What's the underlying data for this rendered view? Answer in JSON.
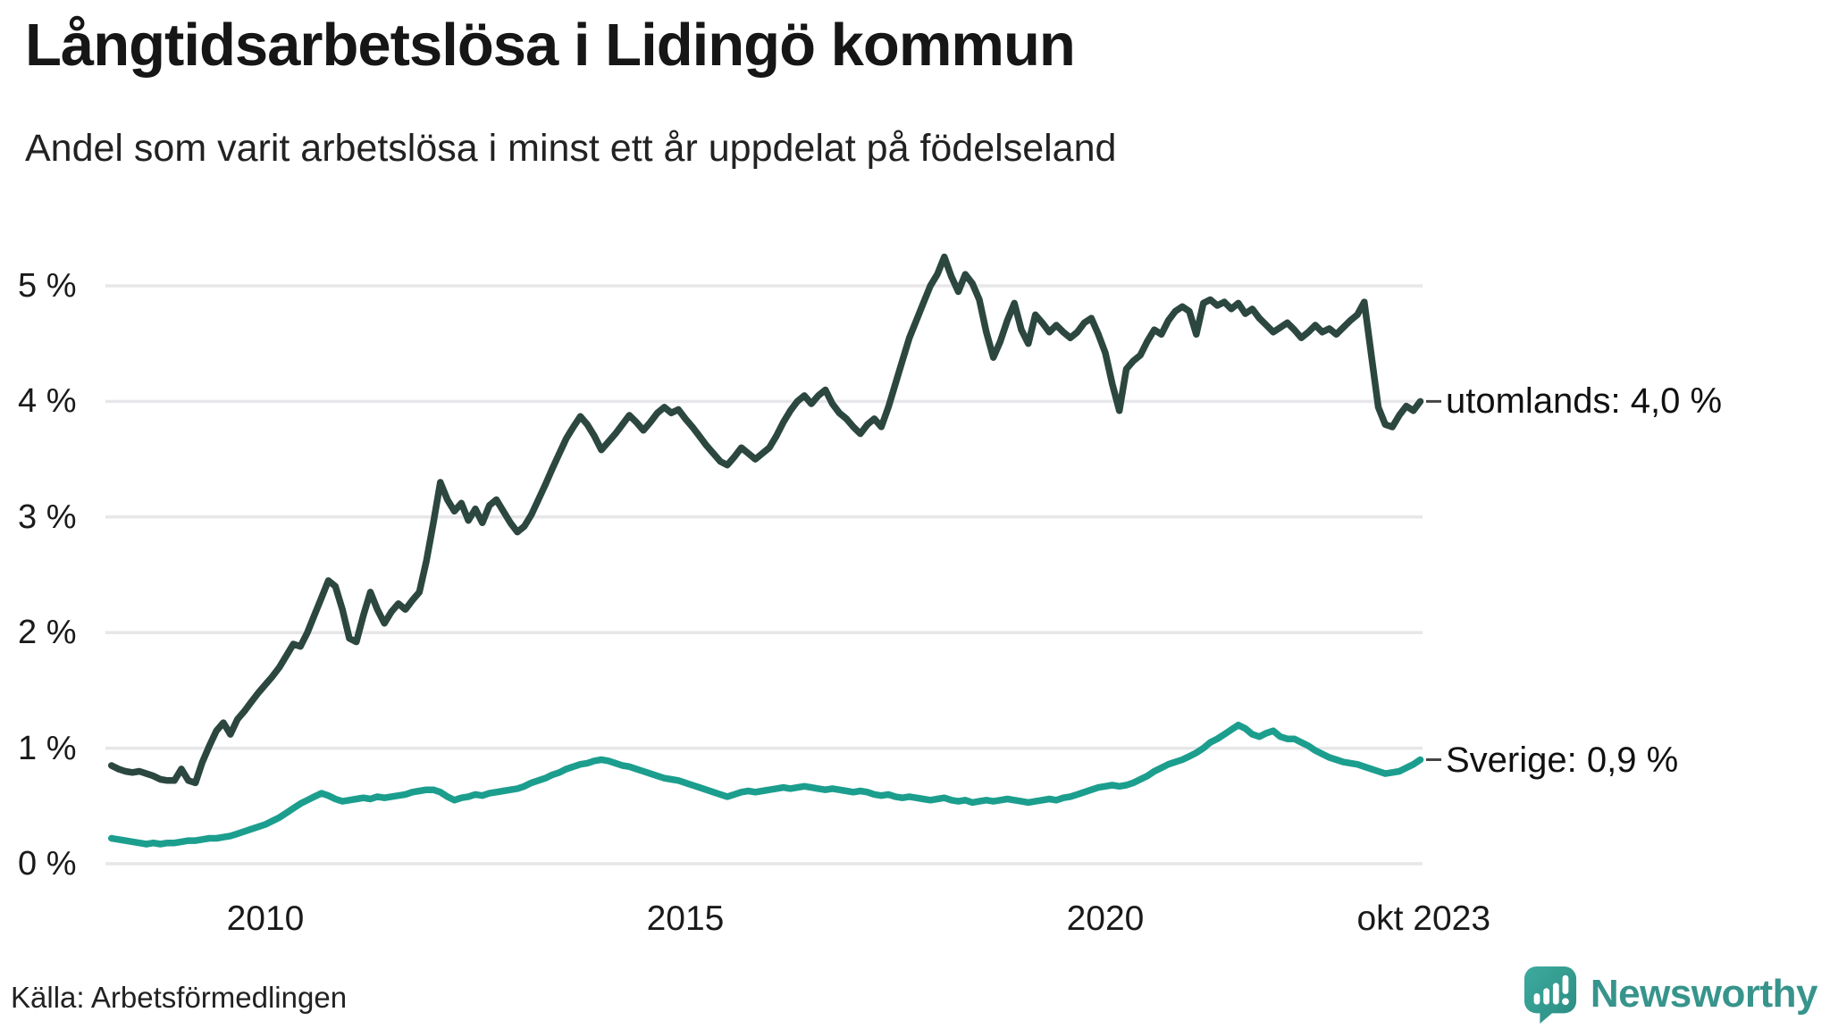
{
  "header": {
    "title": "Långtidsarbetslösa i Lidingö kommun",
    "subtitle": "Andel som varit arbetslösa i minst ett år uppdelat på födelseland"
  },
  "footer": {
    "source": "Källa: Arbetsförmedlingen",
    "brand_name": "Newsworthy"
  },
  "colors": {
    "utomlands_line": "#2c473f",
    "sverige_line": "#1c9e8e",
    "gridline": "#e7e7ea",
    "text": "#1a1a1a",
    "label_dash": "#444444",
    "brand_teal": "#37948c",
    "brand_teal_dark": "#2b8b81"
  },
  "chart_data": {
    "type": "line",
    "title": "Långtidsarbetslösa i Lidingö kommun",
    "subtitle": "Andel som varit arbetslösa i minst ett år uppdelat på födelseland",
    "unit": "%",
    "x_interval": "monthly",
    "x_start": {
      "year": 2008,
      "month": 3
    },
    "x_end": {
      "year": 2023,
      "month": 10
    },
    "ylim": [
      0,
      5.4
    ],
    "yticks": [
      5,
      4,
      3,
      2,
      1,
      0
    ],
    "ytick_format": "{v} %",
    "grid": "horizontal",
    "legend_position": "right-end-labels",
    "xticks": [
      {
        "label": "2010",
        "t": 2010.0
      },
      {
        "label": "2015",
        "t": 2015.0
      },
      {
        "label": "2020",
        "t": 2020.0
      },
      {
        "label": "okt 2023",
        "t": 2023.79
      }
    ],
    "source": "Källa: Arbetsförmedlingen",
    "series": [
      {
        "name": "utomlands",
        "end_label": "utomlands: 4,0 %",
        "final_value": 4.0,
        "color": "#2c473f",
        "values": [
          0.85,
          0.82,
          0.8,
          0.79,
          0.8,
          0.78,
          0.76,
          0.73,
          0.72,
          0.72,
          0.82,
          0.72,
          0.7,
          0.88,
          1.02,
          1.15,
          1.22,
          1.12,
          1.25,
          1.32,
          1.4,
          1.48,
          1.55,
          1.62,
          1.7,
          1.8,
          1.9,
          1.88,
          2.0,
          2.15,
          2.3,
          2.45,
          2.4,
          2.2,
          1.95,
          1.92,
          2.15,
          2.35,
          2.2,
          2.08,
          2.18,
          2.25,
          2.2,
          2.28,
          2.35,
          2.62,
          2.95,
          3.3,
          3.15,
          3.05,
          3.12,
          2.97,
          3.07,
          2.95,
          3.1,
          3.15,
          3.05,
          2.95,
          2.87,
          2.92,
          3.02,
          3.15,
          3.28,
          3.42,
          3.55,
          3.68,
          3.78,
          3.87,
          3.8,
          3.7,
          3.58,
          3.65,
          3.72,
          3.8,
          3.88,
          3.82,
          3.75,
          3.82,
          3.9,
          3.95,
          3.9,
          3.93,
          3.85,
          3.78,
          3.7,
          3.62,
          3.55,
          3.48,
          3.45,
          3.52,
          3.6,
          3.55,
          3.5,
          3.55,
          3.6,
          3.7,
          3.82,
          3.92,
          4.0,
          4.05,
          3.98,
          4.05,
          4.1,
          3.98,
          3.9,
          3.85,
          3.78,
          3.72,
          3.8,
          3.85,
          3.78,
          3.95,
          4.15,
          4.35,
          4.55,
          4.7,
          4.85,
          5.0,
          5.1,
          5.25,
          5.08,
          4.95,
          5.1,
          5.02,
          4.88,
          4.6,
          4.38,
          4.52,
          4.7,
          4.85,
          4.62,
          4.5,
          4.75,
          4.68,
          4.6,
          4.66,
          4.6,
          4.55,
          4.6,
          4.68,
          4.72,
          4.58,
          4.42,
          4.15,
          3.92,
          4.28,
          4.35,
          4.4,
          4.52,
          4.62,
          4.58,
          4.7,
          4.78,
          4.82,
          4.78,
          4.58,
          4.85,
          4.88,
          4.83,
          4.86,
          4.8,
          4.85,
          4.76,
          4.8,
          4.72,
          4.66,
          4.6,
          4.64,
          4.68,
          4.62,
          4.55,
          4.6,
          4.66,
          4.6,
          4.63,
          4.58,
          4.64,
          4.7,
          4.75,
          4.86,
          4.4,
          3.95,
          3.8,
          3.78,
          3.88,
          3.96,
          3.92,
          4.0
        ]
      },
      {
        "name": "Sverige",
        "end_label": "Sverige: 0,9 %",
        "final_value": 0.9,
        "color": "#1c9e8e",
        "values": [
          0.22,
          0.21,
          0.2,
          0.19,
          0.18,
          0.17,
          0.18,
          0.17,
          0.18,
          0.18,
          0.19,
          0.2,
          0.2,
          0.21,
          0.22,
          0.22,
          0.23,
          0.24,
          0.26,
          0.28,
          0.3,
          0.32,
          0.34,
          0.37,
          0.4,
          0.44,
          0.48,
          0.52,
          0.55,
          0.58,
          0.61,
          0.59,
          0.56,
          0.54,
          0.55,
          0.56,
          0.57,
          0.56,
          0.58,
          0.57,
          0.58,
          0.59,
          0.6,
          0.62,
          0.63,
          0.64,
          0.64,
          0.62,
          0.58,
          0.55,
          0.57,
          0.58,
          0.6,
          0.59,
          0.61,
          0.62,
          0.63,
          0.64,
          0.65,
          0.67,
          0.7,
          0.72,
          0.74,
          0.77,
          0.79,
          0.82,
          0.84,
          0.86,
          0.87,
          0.89,
          0.9,
          0.89,
          0.87,
          0.85,
          0.84,
          0.82,
          0.8,
          0.78,
          0.76,
          0.74,
          0.73,
          0.72,
          0.7,
          0.68,
          0.66,
          0.64,
          0.62,
          0.6,
          0.58,
          0.6,
          0.62,
          0.63,
          0.62,
          0.63,
          0.64,
          0.65,
          0.66,
          0.65,
          0.66,
          0.67,
          0.66,
          0.65,
          0.64,
          0.65,
          0.64,
          0.63,
          0.62,
          0.63,
          0.62,
          0.6,
          0.59,
          0.6,
          0.58,
          0.57,
          0.58,
          0.57,
          0.56,
          0.55,
          0.56,
          0.57,
          0.55,
          0.54,
          0.55,
          0.53,
          0.54,
          0.55,
          0.54,
          0.55,
          0.56,
          0.55,
          0.54,
          0.53,
          0.54,
          0.55,
          0.56,
          0.55,
          0.57,
          0.58,
          0.6,
          0.62,
          0.64,
          0.66,
          0.67,
          0.68,
          0.67,
          0.68,
          0.7,
          0.73,
          0.76,
          0.8,
          0.83,
          0.86,
          0.88,
          0.9,
          0.93,
          0.96,
          1.0,
          1.05,
          1.08,
          1.12,
          1.16,
          1.2,
          1.17,
          1.12,
          1.1,
          1.13,
          1.15,
          1.1,
          1.08,
          1.08,
          1.05,
          1.02,
          0.98,
          0.95,
          0.92,
          0.9,
          0.88,
          0.87,
          0.86,
          0.84,
          0.82,
          0.8,
          0.78,
          0.79,
          0.8,
          0.83,
          0.86,
          0.9
        ]
      }
    ]
  }
}
